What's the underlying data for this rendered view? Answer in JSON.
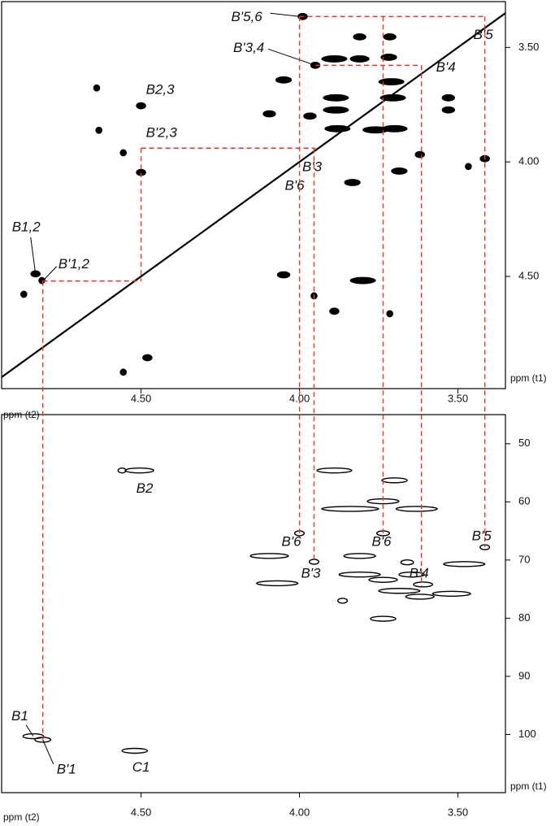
{
  "chart_data": [
    {
      "type": "scatter",
      "x_label": "ppm (t2)",
      "y_label": "ppm (t1)",
      "xlim": [
        4.94,
        3.35
      ],
      "ylim": [
        3.3,
        4.99
      ],
      "xticks": [
        {
          "value": 4.5,
          "label": "4.50"
        },
        {
          "value": 4.0,
          "label": "4.00"
        },
        {
          "value": 3.5,
          "label": "3.50"
        }
      ],
      "yticks": [
        {
          "value": 3.5,
          "label": "3.50"
        },
        {
          "value": 4.0,
          "label": "4.00"
        },
        {
          "value": 4.5,
          "label": "4.50"
        }
      ],
      "diagonal": true,
      "color": "#000000",
      "filled": true,
      "x": [
        3.99,
        3.715,
        3.81,
        3.89,
        3.81,
        3.718,
        3.95,
        4.05,
        4.5,
        3.885,
        3.885,
        3.71,
        3.705,
        3.53,
        3.53,
        4.095,
        3.967,
        3.88,
        3.7,
        3.76,
        3.415,
        3.62,
        3.467,
        3.685,
        3.833,
        4.5,
        4.556,
        4.633,
        4.64,
        4.05,
        3.8,
        3.954,
        3.89,
        3.715,
        4.833,
        4.813,
        4.87,
        4.48,
        4.556
      ],
      "values": [
        3.365,
        3.454,
        3.454,
        3.55,
        3.55,
        3.543,
        3.578,
        3.642,
        3.755,
        3.72,
        3.773,
        3.65,
        3.72,
        3.72,
        3.773,
        3.79,
        3.8,
        3.855,
        3.855,
        3.86,
        3.986,
        3.968,
        4.02,
        4.04,
        4.09,
        4.046,
        3.96,
        3.862,
        3.677,
        4.493,
        4.518,
        4.585,
        4.652,
        4.663,
        4.489,
        4.518,
        4.578,
        4.855,
        4.918
      ],
      "sizes": [
        0.03,
        0.04,
        0.04,
        0.08,
        0.06,
        0.05,
        0.03,
        0.05,
        0.03,
        0.08,
        0.08,
        0.08,
        0.08,
        0.04,
        0.04,
        0.04,
        0.04,
        0.08,
        0.08,
        0.08,
        0.03,
        0.03,
        0.02,
        0.05,
        0.05,
        0.03,
        0.02,
        0.02,
        0.02,
        0.04,
        0.08,
        0.02,
        0.03,
        0.02,
        0.03,
        0.02,
        0.02,
        0.03,
        0.02
      ],
      "annotations": [
        {
          "text": "B'5,6",
          "x": 4.0,
          "y": 3.365
        },
        {
          "text": "B'5",
          "x": 3.415,
          "y": 3.365
        },
        {
          "text": "B'3,4",
          "x": 3.95,
          "y": 3.578
        },
        {
          "text": "B'4",
          "x": 3.615,
          "y": 3.578
        },
        {
          "text": "B2,3",
          "x": 4.5,
          "y": 3.755
        },
        {
          "text": "B'2,3",
          "x": 4.5,
          "y": 3.94
        },
        {
          "text": "B'3",
          "x": 3.95,
          "y": 3.94
        },
        {
          "text": "B'6",
          "x": 4.0,
          "y": 4.0
        },
        {
          "text": "B1,2",
          "x": 4.833,
          "y": 4.489
        },
        {
          "text": "B'1,2",
          "x": 4.81,
          "y": 4.52
        }
      ]
    },
    {
      "type": "scatter",
      "x_label": "ppm (t2)",
      "y_label": "ppm (t1)",
      "xlim": [
        4.94,
        3.35
      ],
      "ylim": [
        45,
        110
      ],
      "xticks": [
        {
          "value": 4.5,
          "label": "4.50"
        },
        {
          "value": 4.0,
          "label": "4.00"
        },
        {
          "value": 3.5,
          "label": "3.50"
        }
      ],
      "yticks": [
        50,
        60,
        70,
        80,
        90,
        100
      ],
      "diagonal": false,
      "color": "#000000",
      "filled": false,
      "x": [
        4.505,
        4.56,
        3.89,
        3.7,
        3.736,
        3.84,
        3.63,
        3.736,
        4.0,
        3.415,
        4.095,
        3.81,
        3.954,
        3.66,
        3.48,
        3.81,
        3.646,
        3.736,
        3.61,
        4.07,
        3.685,
        3.52,
        3.62,
        3.864,
        3.736,
        4.84,
        4.81,
        4.52
      ],
      "values": [
        54.6,
        54.6,
        54.6,
        56.3,
        59.9,
        61.2,
        61.2,
        65.4,
        65.4,
        67.8,
        69.3,
        69.3,
        70.3,
        70.4,
        70.7,
        72.5,
        72.5,
        73.4,
        74.2,
        74.0,
        75.3,
        75.8,
        76.3,
        77.0,
        80.1,
        100.3,
        100.9,
        102.8
      ],
      "sizes": [
        0.09,
        0.025,
        0.11,
        0.08,
        0.1,
        0.18,
        0.13,
        0.04,
        0.03,
        0.03,
        0.12,
        0.1,
        0.03,
        0.04,
        0.13,
        0.13,
        0.08,
        0.09,
        0.06,
        0.13,
        0.13,
        0.12,
        0.09,
        0.03,
        0.08,
        0.065,
        0.05,
        0.08
      ],
      "annotations": [
        {
          "text": "B2",
          "x": 4.505,
          "y": 54.6
        },
        {
          "text": "B'6",
          "x": 4.0,
          "y": 65.4
        },
        {
          "text": "B'6",
          "x": 3.736,
          "y": 65.4
        },
        {
          "text": "B'5",
          "x": 3.415,
          "y": 67.8
        },
        {
          "text": "B'3",
          "x": 3.954,
          "y": 70.3
        },
        {
          "text": "B'4",
          "x": 3.615,
          "y": 74.5
        },
        {
          "text": "B1",
          "x": 4.84,
          "y": 100.3
        },
        {
          "text": "B'1",
          "x": 4.81,
          "y": 100.9
        },
        {
          "text": "C1",
          "x": 4.52,
          "y": 102.8
        }
      ]
    }
  ],
  "guides": {
    "color": "#e8352b",
    "horizontal": [
      {
        "y": 4.52,
        "x": [
          4.81,
          4.5
        ]
      },
      {
        "y": 3.94,
        "x": [
          4.5,
          3.95
        ]
      },
      {
        "y": 3.578,
        "x": [
          3.95,
          3.615
        ]
      },
      {
        "y": 3.365,
        "x": [
          4.0,
          3.415
        ]
      }
    ],
    "vertical": [
      {
        "x": 4.81,
        "t1": 4.52,
        "c": 100.9
      },
      {
        "x": 4.5,
        "t1": [
          3.94,
          4.52
        ]
      },
      {
        "x": 4.0,
        "t1": 3.365,
        "c": 65.4
      },
      {
        "x": 3.954,
        "t1": 3.94,
        "c": 70.3
      },
      {
        "x": 3.736,
        "t1": 3.365,
        "c": 65.4
      },
      {
        "x": 3.615,
        "t1": 3.578,
        "c": 74.5
      },
      {
        "x": 3.415,
        "t1": 3.365,
        "c": 67.8
      }
    ]
  }
}
